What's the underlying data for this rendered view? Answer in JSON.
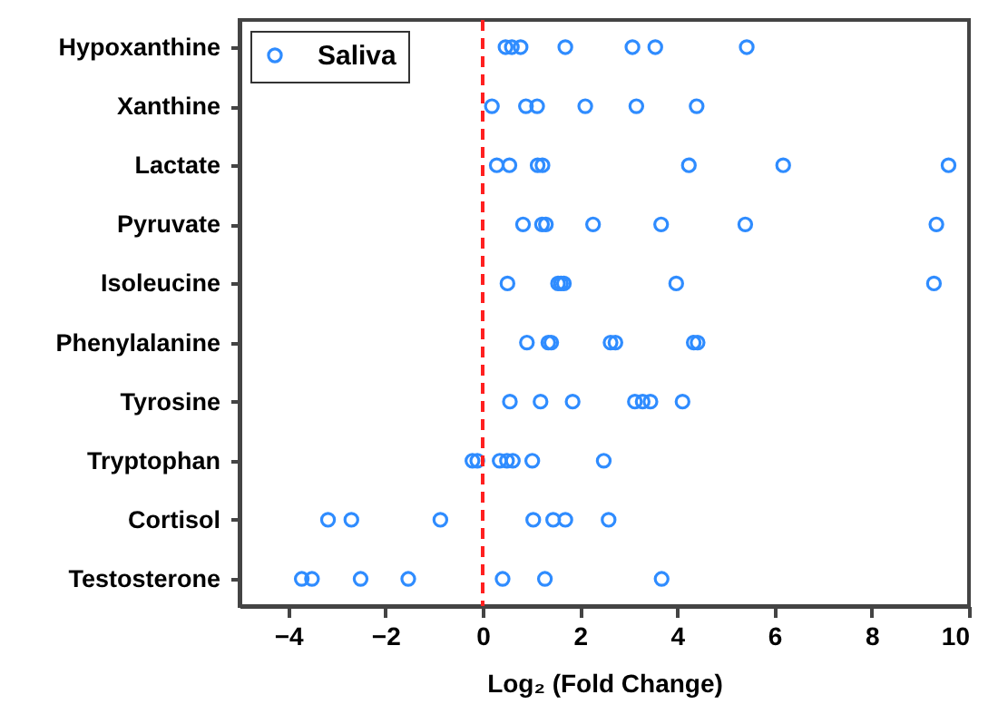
{
  "chart_data": {
    "type": "scatter",
    "orientation": "horizontal",
    "categories": [
      "Hypoxanthine",
      "Xanthine",
      "Lactate",
      "Pyruvate",
      "Isoleucine",
      "Phenylalanine",
      "Tyrosine",
      "Tryptophan",
      "Cortisol",
      "Testosterone"
    ],
    "series": [
      {
        "name": "Saliva",
        "color": "#2f8cff",
        "x": [
          "Hypoxanthine",
          "Hypoxanthine",
          "Hypoxanthine",
          "Hypoxanthine",
          "Hypoxanthine",
          "Hypoxanthine",
          "Hypoxanthine",
          "Xanthine",
          "Xanthine",
          "Xanthine",
          "Xanthine",
          "Xanthine",
          "Xanthine",
          "Lactate",
          "Lactate",
          "Lactate",
          "Lactate",
          "Lactate",
          "Lactate",
          "Lactate",
          "Pyruvate",
          "Pyruvate",
          "Pyruvate",
          "Pyruvate",
          "Pyruvate",
          "Pyruvate",
          "Pyruvate",
          "Isoleucine",
          "Isoleucine",
          "Isoleucine",
          "Isoleucine",
          "Isoleucine",
          "Isoleucine",
          "Phenylalanine",
          "Phenylalanine",
          "Phenylalanine",
          "Phenylalanine",
          "Phenylalanine",
          "Phenylalanine",
          "Phenylalanine",
          "Tyrosine",
          "Tyrosine",
          "Tyrosine",
          "Tyrosine",
          "Tyrosine",
          "Tyrosine",
          "Tyrosine",
          "Tryptophan",
          "Tryptophan",
          "Tryptophan",
          "Tryptophan",
          "Tryptophan",
          "Tryptophan",
          "Tryptophan",
          "Cortisol",
          "Cortisol",
          "Cortisol",
          "Cortisol",
          "Cortisol",
          "Cortisol",
          "Cortisol",
          "Testosterone",
          "Testosterone",
          "Testosterone",
          "Testosterone",
          "Testosterone",
          "Testosterone",
          "Testosterone"
        ],
        "values": [
          0.47,
          0.6,
          0.78,
          1.7,
          3.08,
          3.55,
          5.43,
          0.19,
          0.89,
          1.12,
          2.11,
          3.16,
          4.4,
          0.29,
          0.55,
          1.13,
          1.23,
          4.24,
          6.18,
          9.58,
          0.83,
          1.22,
          1.3,
          2.27,
          3.67,
          5.4,
          9.33,
          0.51,
          1.55,
          1.61,
          1.67,
          3.98,
          9.28,
          0.91,
          1.35,
          1.41,
          2.63,
          2.73,
          4.34,
          4.42,
          0.56,
          1.19,
          1.85,
          3.13,
          3.29,
          3.45,
          4.11,
          -0.21,
          -0.11,
          0.35,
          0.5,
          0.62,
          1.02,
          2.49,
          -3.18,
          -2.7,
          -0.87,
          1.04,
          1.45,
          1.7,
          2.59,
          -3.72,
          -3.51,
          -2.51,
          -1.53,
          0.41,
          1.28,
          3.68
        ]
      }
    ],
    "xlabel": "Log₂ (Fold Change)",
    "xlim": [
      -5,
      10
    ],
    "xticks": [
      -4,
      -2,
      0,
      2,
      4,
      6,
      8,
      10
    ],
    "ref_lines": [
      {
        "axis": "x",
        "value": 0,
        "color": "#ff2020",
        "line_style": "dashed"
      }
    ],
    "legend": "top left",
    "marker": "circle",
    "grid": false
  }
}
